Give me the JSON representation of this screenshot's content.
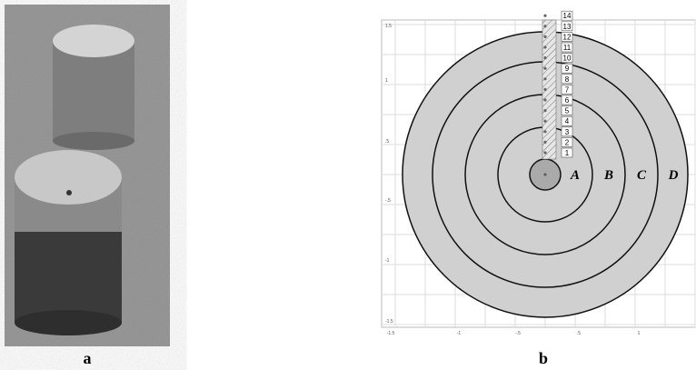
{
  "figure": {
    "panel_labels": [
      "a",
      "b"
    ],
    "diagram": {
      "zone_labels": [
        "A",
        "B",
        "C",
        "D"
      ],
      "layer_labels": [
        "1",
        "2",
        "3",
        "4",
        "5",
        "6",
        "7",
        "8",
        "9",
        "10",
        "11",
        "12",
        "13",
        "14"
      ],
      "y_axis_labels": [
        "1.5",
        "1",
        ".5",
        "-.5",
        "-1",
        "-1.5"
      ],
      "x_axis_labels": [
        "-1.5",
        "-1",
        "-.5",
        ".5",
        "1"
      ]
    }
  }
}
